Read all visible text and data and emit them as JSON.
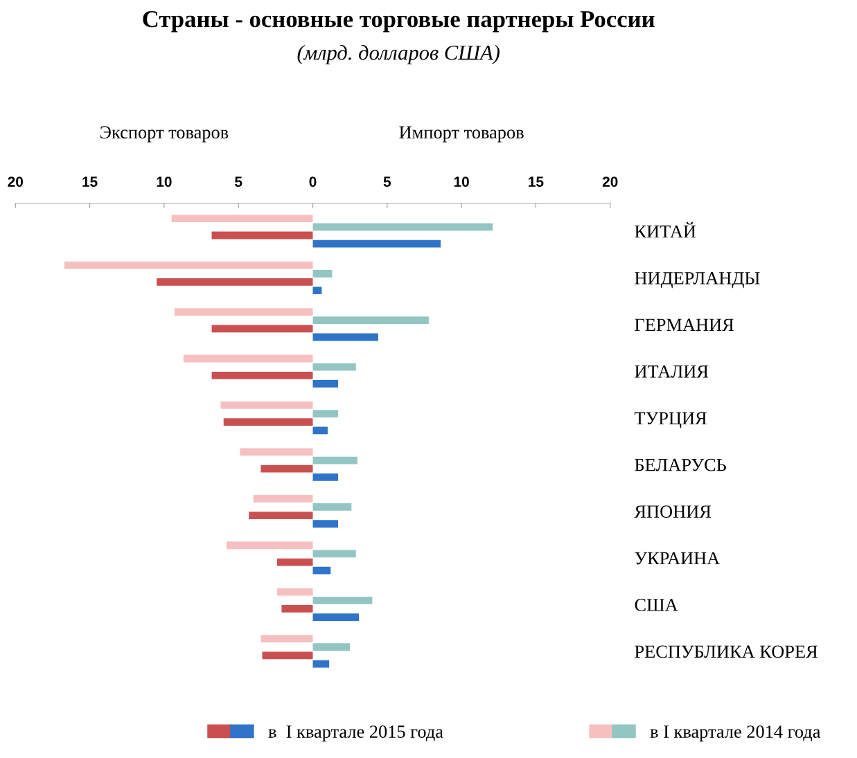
{
  "chart_data": {
    "type": "bar",
    "orientation": "horizontal",
    "title": "Страны - основные торговые партнеры России",
    "subtitle": "(млрд. долларов США)",
    "annotations": [
      "Экспорт товаров",
      "Импорт товаров"
    ],
    "categories": [
      "КИТАЙ",
      "НИДЕРЛАНДЫ",
      "ГЕРМАНИЯ",
      "ИТАЛИЯ",
      "ТУРЦИЯ",
      "БЕЛАРУСЬ",
      "ЯПОНИЯ",
      "УКРАИНА",
      "США",
      "РЕСПУБЛИКА КОРЕЯ"
    ],
    "series": [
      {
        "name": "в  I квартале 2015 года",
        "color": "#c9504f",
        "values": [
          -6.8,
          -10.5,
          -6.8,
          -6.8,
          -6.0,
          -3.5,
          -4.3,
          -2.4,
          -2.1,
          -3.4
        ]
      },
      {
        "color": "#2f74c8",
        "values": [
          8.6,
          0.6,
          4.4,
          1.7,
          1.0,
          1.7,
          1.7,
          1.2,
          3.1,
          1.1
        ]
      },
      {
        "name": "в I квартале 2014 года",
        "color": "#f7c0c0",
        "values": [
          -9.5,
          -16.7,
          -9.3,
          -8.7,
          -6.2,
          -4.9,
          -4.0,
          -5.8,
          -2.4,
          -3.5
        ]
      },
      {
        "color": "#93c6c2",
        "values": [
          12.1,
          1.3,
          7.8,
          2.9,
          1.7,
          3.0,
          2.6,
          2.9,
          4.0,
          2.5
        ]
      }
    ],
    "xlim": [
      -20,
      20
    ],
    "xticks": [
      {
        "value": -20,
        "label": "20"
      },
      {
        "value": -15,
        "label": "15"
      },
      {
        "value": -10,
        "label": "10"
      },
      {
        "value": -5,
        "label": "5"
      },
      0,
      5,
      10,
      15,
      20
    ],
    "grid": false,
    "legend": "bottom"
  }
}
